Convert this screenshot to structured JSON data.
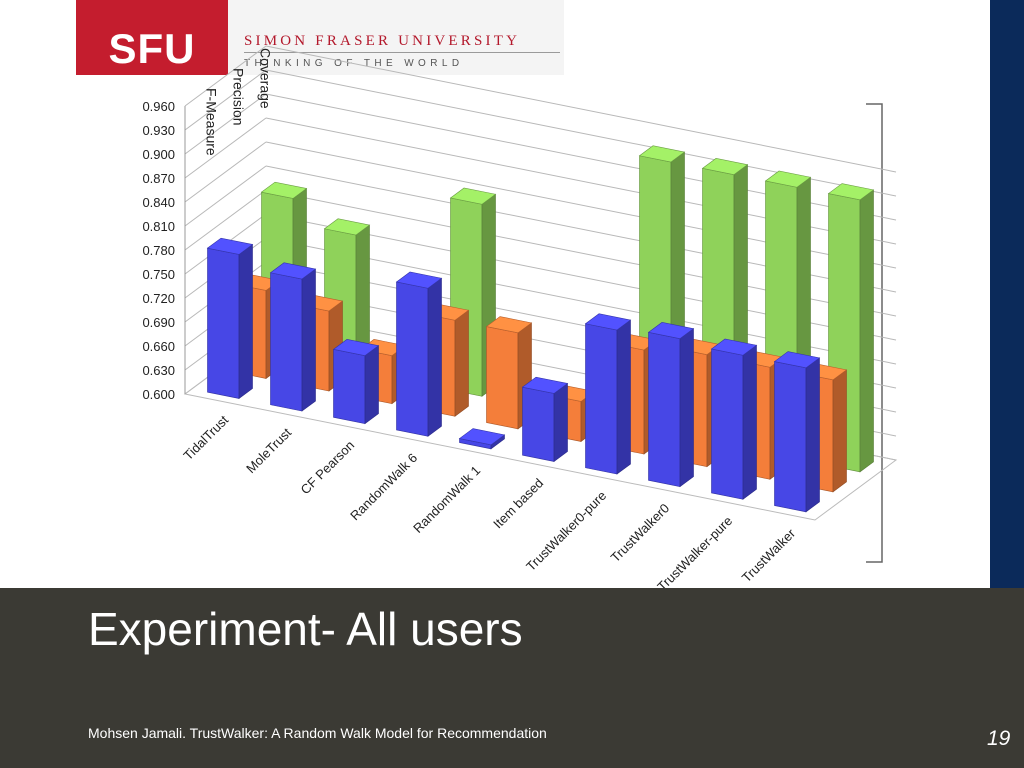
{
  "header": {
    "logo_mark": "SFU",
    "university_name": "SIMON FRASER UNIVERSITY",
    "tagline": "THINKING OF THE WORLD"
  },
  "slide": {
    "title": "Experiment- All users",
    "footer": "Mohsen Jamali. TrustWalker: A Random Walk Model for Recommendation",
    "page_number": "19"
  },
  "colors": {
    "coverage": "#8fd25a",
    "precision": "#f47e3a",
    "f_measure": "#4747e6",
    "footer_bg": "#3b3a34",
    "logo_red": "#c41d2e",
    "right_band": "#0b2a5a"
  },
  "chart_data": {
    "type": "bar",
    "style": "3d-clustered",
    "title": "",
    "ylim": [
      0.6,
      0.96
    ],
    "yticks": [
      "0.960",
      "0.930",
      "0.900",
      "0.870",
      "0.840",
      "0.810",
      "0.780",
      "0.750",
      "0.720",
      "0.690",
      "0.660",
      "0.630",
      "0.600"
    ],
    "grid": true,
    "categories": [
      "TidalTrust",
      "MoleTrust",
      "CF Pearson",
      "RandomWalk 6",
      "RandomWalk 1",
      "Item based",
      "TrustWalker0-pure",
      "TrustWalker0",
      "TrustWalker-pure",
      "TrustWalker"
    ],
    "series": [
      {
        "name": "Coverage",
        "values": [
          0.8,
          0.77,
          null,
          0.84,
          null,
          null,
          0.94,
          0.94,
          0.94,
          0.94
        ]
      },
      {
        "name": "Precision",
        "values": [
          0.71,
          0.7,
          0.66,
          0.72,
          0.72,
          0.65,
          0.73,
          0.74,
          0.74,
          0.74
        ]
      },
      {
        "name": "F-Measure",
        "values": [
          0.78,
          0.765,
          0.685,
          0.785,
          0.605,
          0.685,
          0.78,
          0.785,
          0.78,
          0.78
        ]
      }
    ]
  }
}
